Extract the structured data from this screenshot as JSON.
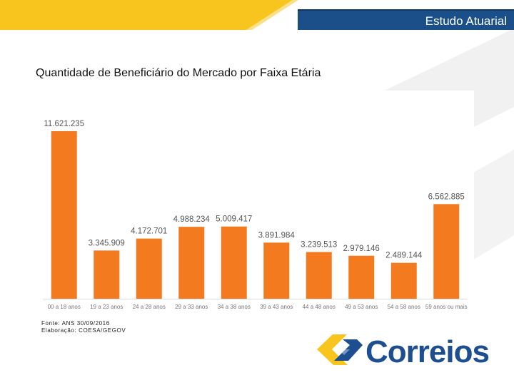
{
  "header": {
    "title": "Estudo Atuarial"
  },
  "slide_title": "Quantidade de Beneficiário do Mercado por Faixa Etária",
  "source": {
    "line1": "Fonte: ANS 30/09/2016",
    "line2": "Elaboração: COESA/GEGOV"
  },
  "logo": {
    "text": "Correios"
  },
  "colors": {
    "bar": "#f47a20",
    "header": "#1b4f8a",
    "logo_yellow": "#f7c51e",
    "logo_blue": "#1d4e8f"
  },
  "chart_data": {
    "type": "bar",
    "title": "",
    "xlabel": "",
    "ylabel": "",
    "ylim": [
      0,
      12500000
    ],
    "categories": [
      "00 a 18 anos",
      "19 a 23 anos",
      "24 a 28 anos",
      "29 a 33 anos",
      "34 a 38 anos",
      "39 a 43 anos",
      "44 a 48 anos",
      "49 a 53 anos",
      "54 a 58 anos",
      "59 anos ou mais"
    ],
    "values": [
      11621235,
      3345909,
      4172701,
      4988234,
      5009417,
      3891984,
      3239513,
      2979146,
      2489144,
      6562885
    ],
    "value_labels": [
      "11.621.235",
      "3.345.909",
      "4.172.701",
      "4.988.234",
      "5.009.417",
      "3.891.984",
      "3.239.513",
      "2.979.146",
      "2.489.144",
      "6.562.885"
    ]
  }
}
